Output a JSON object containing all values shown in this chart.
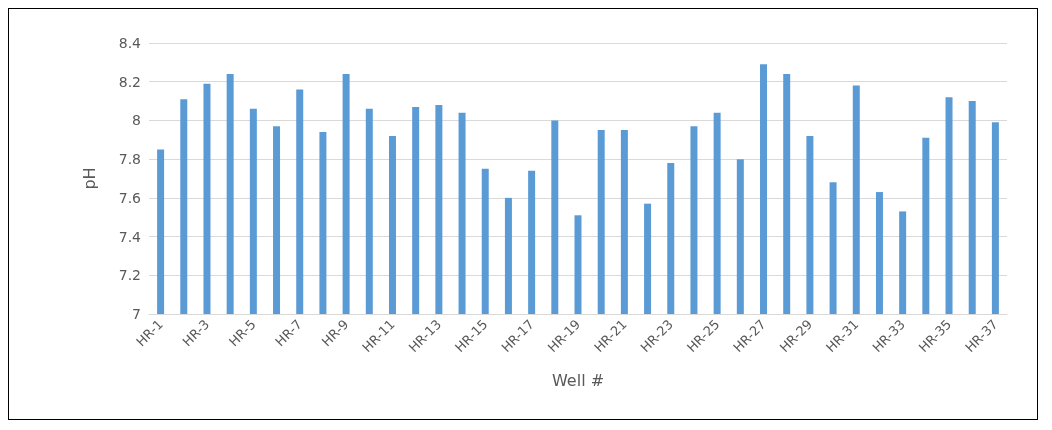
{
  "chart_data": {
    "type": "bar",
    "xlabel": "Well #",
    "ylabel": "pH",
    "categories": [
      "HR-1",
      null,
      "HR-3",
      null,
      "HR-5",
      null,
      "HR-7",
      null,
      "HR-9",
      null,
      "HR-11",
      null,
      "HR-13",
      null,
      "HR-15",
      null,
      "HR-17",
      null,
      "HR-19",
      null,
      "HR-21",
      null,
      "HR-23",
      null,
      "HR-25",
      null,
      "HR-27",
      null,
      "HR-29",
      null,
      "HR-31",
      null,
      "HR-33",
      null,
      "HR-35",
      null,
      "HR-37"
    ],
    "values": [
      7.85,
      8.11,
      8.19,
      8.24,
      8.06,
      7.97,
      8.16,
      7.94,
      8.24,
      8.06,
      7.92,
      8.07,
      8.08,
      8.04,
      7.75,
      7.6,
      7.74,
      8.0,
      7.51,
      7.95,
      7.95,
      7.57,
      7.78,
      7.97,
      8.04,
      7.8,
      8.29,
      8.24,
      7.92,
      7.68,
      8.18,
      7.63,
      7.53,
      7.91,
      8.12,
      8.1,
      7.99
    ],
    "color": "#5b9bd5",
    "ylim": [
      7,
      8.4
    ],
    "yticks": [
      7,
      7.2,
      7.4,
      7.6,
      7.8,
      8,
      8.2,
      8.4
    ],
    "grid": "y"
  }
}
